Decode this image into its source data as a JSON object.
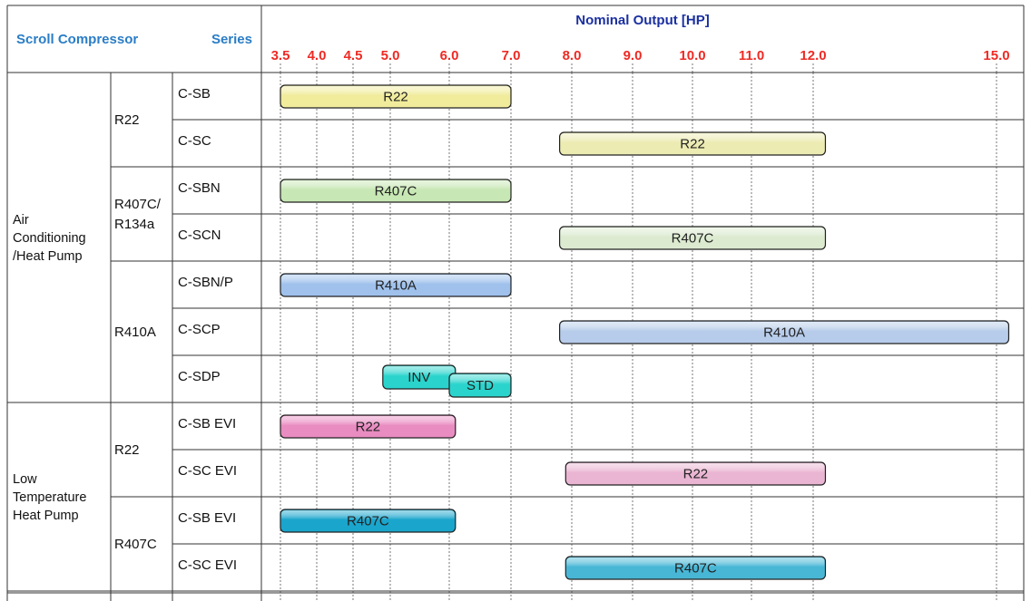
{
  "header": {
    "compressor_label": "Scroll Compressor",
    "series_label": "Series",
    "axis_title": "Nominal Output [HP]"
  },
  "chart_data": {
    "type": "range-bar",
    "xlabel": "Nominal Output [HP]",
    "tick_labels": [
      "3.5",
      "4.0",
      "4.5",
      "5.0",
      "6.0",
      "7.0",
      "8.0",
      "9.0",
      "10.0",
      "11.0",
      "12.0",
      "15.0"
    ],
    "groups": [
      {
        "application": "Air\nConditioning\n/Heat Pump",
        "refrigerants": [
          {
            "label": "R22",
            "rows": [
              {
                "series": "C-SB",
                "bars": [
                  {
                    "label": "R22",
                    "from": 3.5,
                    "to": 7.0,
                    "color": "#f1ec9c"
                  }
                ]
              },
              {
                "series": "C-SC",
                "bars": [
                  {
                    "label": "R22",
                    "from": 7.8,
                    "to": 12.2,
                    "color": "#ecebb2"
                  }
                ]
              }
            ]
          },
          {
            "label": "R407C/\nR134a",
            "rows": [
              {
                "series": "C-SBN",
                "bars": [
                  {
                    "label": "R407C",
                    "from": 3.5,
                    "to": 7.0,
                    "color": "#c7e7b4"
                  }
                ]
              },
              {
                "series": "C-SCN",
                "bars": [
                  {
                    "label": "R407C",
                    "from": 7.8,
                    "to": 12.2,
                    "color": "#dcebd0"
                  }
                ]
              }
            ]
          },
          {
            "label": "R410A",
            "rows": [
              {
                "series": "C-SBN/P",
                "bars": [
                  {
                    "label": "R410A",
                    "from": 3.5,
                    "to": 7.0,
                    "color": "#9fc1ec"
                  }
                ]
              },
              {
                "series": "C-SCP",
                "bars": [
                  {
                    "label": "R410A",
                    "from": 7.8,
                    "to": 15.2,
                    "color": "#b7ccea"
                  }
                ]
              },
              {
                "series": "C-SDP",
                "bars": [
                  {
                    "label": "INV",
                    "from": 4.9,
                    "to": 6.1,
                    "color": "#2ad4cc"
                  },
                  {
                    "label": "STD",
                    "from": 6.0,
                    "to": 7.0,
                    "color": "#2ad4cc"
                  }
                ]
              }
            ]
          }
        ]
      },
      {
        "application": "Low\nTemperature\nHeat Pump",
        "refrigerants": [
          {
            "label": "R22",
            "rows": [
              {
                "series": "C-SB EVI",
                "bars": [
                  {
                    "label": "R22",
                    "from": 3.5,
                    "to": 6.1,
                    "color": "#e98cc1"
                  }
                ]
              },
              {
                "series": "C-SC EVI",
                "bars": [
                  {
                    "label": "R22",
                    "from": 7.9,
                    "to": 12.2,
                    "color": "#eab5d2"
                  }
                ]
              }
            ]
          },
          {
            "label": "R407C",
            "rows": [
              {
                "series": "C-SB EVI",
                "bars": [
                  {
                    "label": "R407C",
                    "from": 3.5,
                    "to": 6.1,
                    "color": "#1aa5cc"
                  }
                ]
              },
              {
                "series": "C-SC EVI",
                "bars": [
                  {
                    "label": "R407C",
                    "from": 7.9,
                    "to": 12.2,
                    "color": "#48b7d6"
                  }
                ]
              }
            ]
          }
        ]
      }
    ]
  }
}
